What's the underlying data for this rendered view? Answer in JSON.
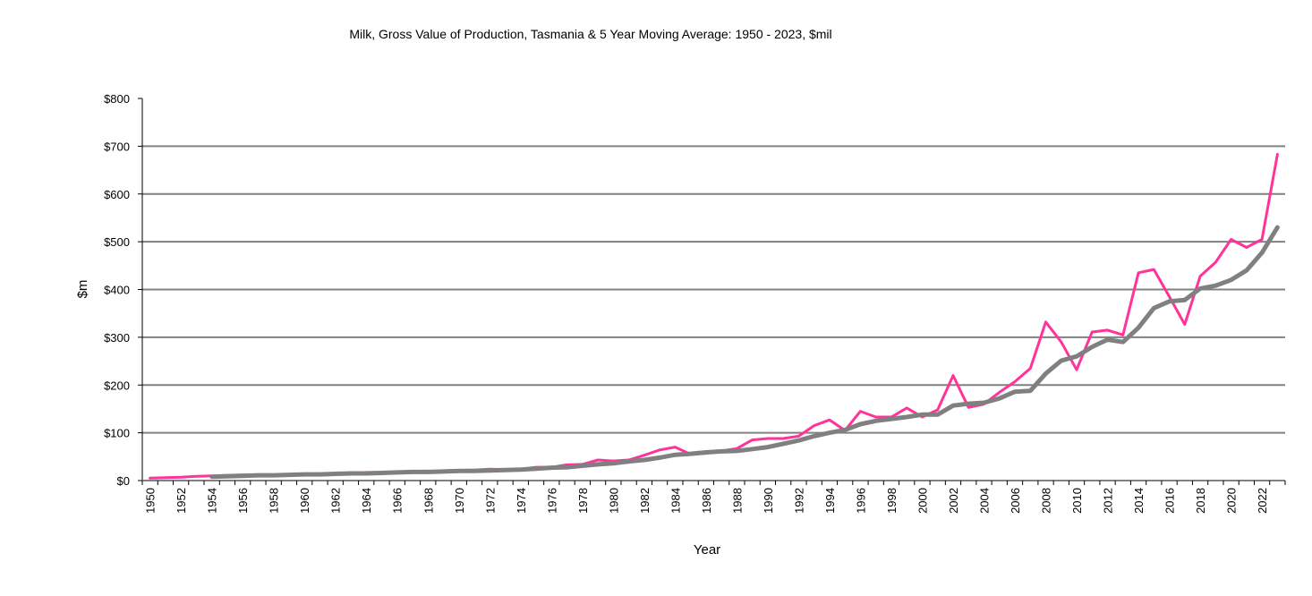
{
  "chart_data": {
    "type": "line",
    "title": "Milk, Gross Value of Production,  Tasmania & 5 Year Moving Average: 1950 - 2023, $mil",
    "xlabel": "Year",
    "ylabel": "$m",
    "ylim": [
      0,
      800
    ],
    "yticks": [
      0,
      100,
      200,
      300,
      400,
      500,
      600,
      700,
      800
    ],
    "ytick_labels": [
      "$0",
      "$100",
      "$200",
      "$300",
      "$400",
      "$500",
      "$600",
      "$700",
      "$800"
    ],
    "grid": "horizontal",
    "legend": "none",
    "x": [
      1950,
      1951,
      1952,
      1953,
      1954,
      1955,
      1956,
      1957,
      1958,
      1959,
      1960,
      1961,
      1962,
      1963,
      1964,
      1965,
      1966,
      1967,
      1968,
      1969,
      1970,
      1971,
      1972,
      1973,
      1974,
      1975,
      1976,
      1977,
      1978,
      1979,
      1980,
      1981,
      1982,
      1983,
      1984,
      1985,
      1986,
      1987,
      1988,
      1989,
      1990,
      1991,
      1992,
      1993,
      1994,
      1995,
      1996,
      1997,
      1998,
      1999,
      2000,
      2001,
      2002,
      2003,
      2004,
      2005,
      2006,
      2007,
      2008,
      2009,
      2010,
      2011,
      2012,
      2013,
      2014,
      2015,
      2016,
      2017,
      2018,
      2019,
      2020,
      2021,
      2022,
      2023
    ],
    "xtick_labels": [
      "1950",
      "1952",
      "1954",
      "1956",
      "1958",
      "1960",
      "1962",
      "1964",
      "1966",
      "1968",
      "1970",
      "1972",
      "1974",
      "1976",
      "1978",
      "1980",
      "1982",
      "1984",
      "1986",
      "1988",
      "1990",
      "1992",
      "1994",
      "1996",
      "1998",
      "2000",
      "2002",
      "2004",
      "2006",
      "2008",
      "2010",
      "2012",
      "2014",
      "2016",
      "2018",
      "2020",
      "2022"
    ],
    "series": [
      {
        "name": "Milk, Gross Value of Production, Tasmania",
        "color": "#ff3399",
        "values": [
          5,
          6,
          7,
          9,
          10,
          11,
          12,
          12,
          12,
          13,
          14,
          14,
          15,
          16,
          17,
          17,
          18,
          19,
          19,
          19,
          21,
          22,
          24,
          23,
          24,
          28,
          28,
          33,
          34,
          43,
          41,
          43,
          53,
          64,
          70,
          55,
          57,
          62,
          67,
          85,
          88,
          88,
          93,
          115,
          127,
          105,
          145,
          133,
          133,
          152,
          133,
          148,
          220,
          153,
          160,
          185,
          207,
          235,
          332,
          290,
          232,
          311,
          315,
          305,
          435,
          442,
          385,
          327,
          428,
          457,
          505,
          488,
          505,
          683
        ]
      },
      {
        "name": "5 Year Moving Average",
        "color": "#808080",
        "values": [
          null,
          null,
          null,
          null,
          8,
          9,
          10,
          11,
          11,
          12,
          13,
          13,
          14,
          15,
          15,
          16,
          17,
          18,
          18,
          19,
          20,
          20,
          21,
          22,
          23,
          25,
          27,
          28,
          31,
          34,
          36,
          40,
          43,
          48,
          54,
          56,
          59,
          61,
          62,
          66,
          70,
          77,
          84,
          93,
          100,
          106,
          118,
          125,
          129,
          133,
          138,
          138,
          157,
          161,
          163,
          172,
          186,
          188,
          224,
          251,
          260,
          280,
          295,
          290,
          320,
          361,
          375,
          378,
          402,
          408,
          420,
          440,
          477,
          530
        ]
      }
    ]
  }
}
